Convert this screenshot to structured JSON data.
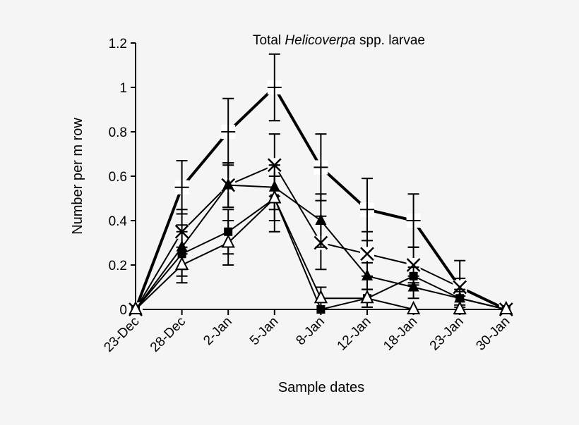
{
  "chart_data": {
    "type": "line",
    "title_prefix": "Total ",
    "title_italic": "Helicoverpa",
    "title_suffix": " spp. larvae",
    "xlabel": "Sample dates",
    "ylabel": "Number per m row",
    "ylim": [
      0,
      1.2
    ],
    "yticks": [
      "0",
      "0.2",
      "0.4",
      "0.6",
      "0.8",
      "1",
      "1.2"
    ],
    "categories": [
      "23-Dec",
      "28-Dec",
      "2-Jan",
      "5-Jan",
      "8-Jan",
      "12-Jan",
      "18-Jan",
      "23-Jan",
      "30-Jan"
    ],
    "grid": false,
    "series": [
      {
        "marker": "plus",
        "values": [
          0,
          0.55,
          0.8,
          1.0,
          0.64,
          0.45,
          0.4,
          0.1,
          0
        ],
        "errors": [
          0,
          0.12,
          0.15,
          0.15,
          0.15,
          0.14,
          0.12,
          0.04,
          0
        ]
      },
      {
        "marker": "cross",
        "values": [
          0,
          0.35,
          0.56,
          0.65,
          0.3,
          0.25,
          0.2,
          0.1,
          0
        ],
        "errors": [
          0,
          0.1,
          0.1,
          0.14,
          0.12,
          0.1,
          0.08,
          0.12,
          0
        ]
      },
      {
        "marker": "triangle-filled",
        "values": [
          0,
          0.28,
          0.56,
          0.55,
          0.4,
          0.15,
          0.1,
          0.05,
          0
        ],
        "errors": [
          0,
          0.1,
          0.1,
          0.1,
          0.12,
          0.06,
          0.05,
          0.04,
          0
        ]
      },
      {
        "marker": "square-filled",
        "values": [
          0,
          0.25,
          0.35,
          0.5,
          0,
          0.05,
          0.15,
          0.05,
          0
        ],
        "errors": [
          0,
          0.1,
          0.1,
          0.1,
          0,
          0.04,
          0.04,
          0.03,
          0
        ]
      },
      {
        "marker": "triangle-open",
        "values": [
          0,
          0.2,
          0.3,
          0.5,
          0.05,
          0.05,
          0,
          0,
          0
        ],
        "errors": [
          0,
          0.08,
          0.1,
          0.15,
          0.05,
          0.04,
          0,
          0,
          0
        ]
      }
    ]
  }
}
